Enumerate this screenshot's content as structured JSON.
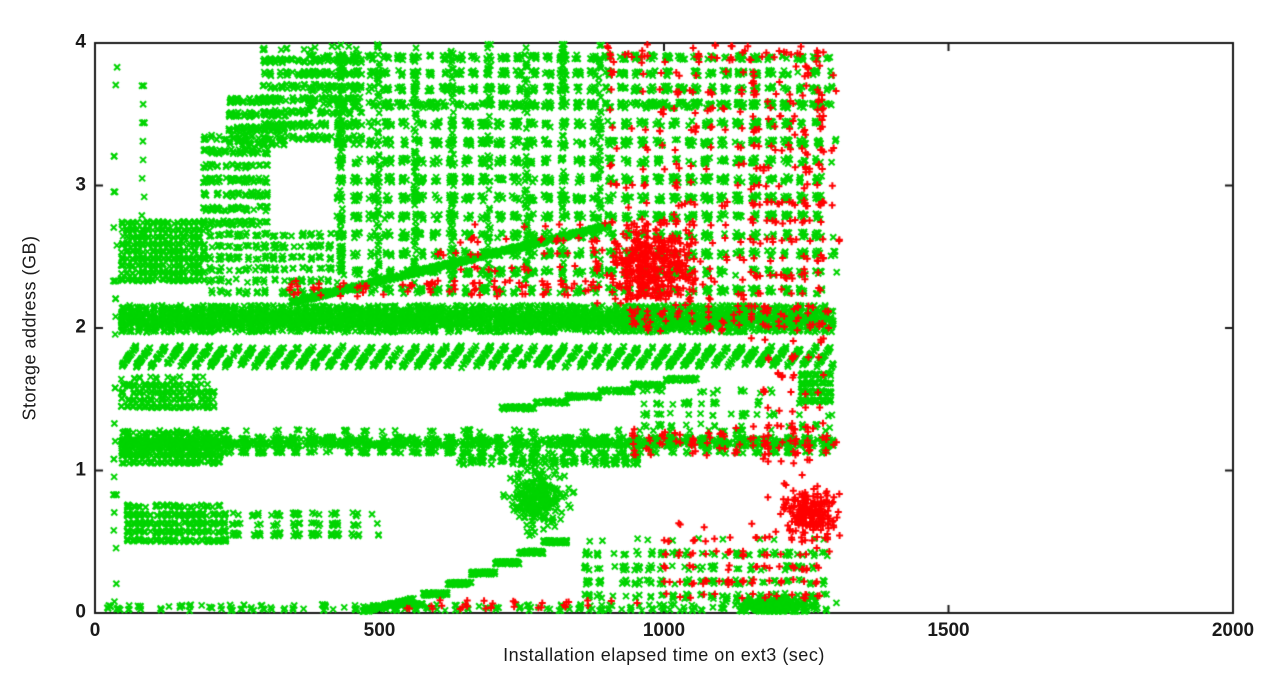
{
  "figure": {
    "background": "#ffffff"
  },
  "chart_data": {
    "type": "scatter",
    "title": "",
    "xlabel": "Installation elapsed time on ext3 (sec)",
    "ylabel": "Storage address (GB)",
    "xlim": [
      0,
      2000
    ],
    "ylim": [
      0,
      4
    ],
    "xticks": [
      0,
      500,
      1000,
      1500,
      2000
    ],
    "yticks": [
      0,
      1,
      2,
      3,
      4
    ],
    "grid": false,
    "legend": "none",
    "axis_color": "#1a1a1a",
    "x_data_extent": [
      15,
      1300
    ],
    "series": [
      {
        "name": "green-x-points",
        "marker": "x",
        "color": "#00d400"
      },
      {
        "name": "red-plus-points",
        "marker": "+",
        "color": "#ff0000"
      }
    ],
    "regions": [
      {
        "kind": "col",
        "series": 0,
        "t": [
          36,
          4
        ],
        "gb": [
          0.08,
          4.0
        ],
        "gq": 0.125,
        "n": 34
      },
      {
        "kind": "col",
        "series": 0,
        "t": [
          84,
          3
        ],
        "gb": [
          2.4,
          4.0
        ],
        "gq": 0.13,
        "n": 14
      },
      {
        "kind": "rect",
        "series": 0,
        "t": [
          46,
          200
        ],
        "gb": [
          2.33,
          2.78
        ],
        "tq": 9,
        "gq": 0.05,
        "n": 550
      },
      {
        "kind": "rect",
        "series": 0,
        "t": [
          46,
          215
        ],
        "gb": [
          1.44,
          1.66
        ],
        "tq": 10,
        "gq": 0.05,
        "n": 260
      },
      {
        "kind": "rect",
        "series": 0,
        "t": [
          46,
          225
        ],
        "gb": [
          1.05,
          1.3
        ],
        "tq": 10,
        "gq": 0.05,
        "n": 380
      },
      {
        "kind": "rect",
        "series": 0,
        "t": [
          56,
          235
        ],
        "gb": [
          0.5,
          0.78
        ],
        "tq": 10,
        "gq": 0.06,
        "n": 380
      },
      {
        "kind": "rect",
        "series": 0,
        "t": [
          240,
          490
        ],
        "gb": [
          0.54,
          0.74
        ],
        "tq": 35,
        "gq": 0.07,
        "n": 130
      },
      {
        "kind": "rect",
        "series": 0,
        "t": [
          46,
          1298
        ],
        "gb": [
          1.97,
          2.16
        ],
        "tq": 14,
        "n": 2400
      },
      {
        "kind": "rect",
        "series": 0,
        "t": [
          46,
          1298
        ],
        "gb": [
          2.02,
          2.1
        ],
        "tq": 7,
        "n": 900
      },
      {
        "kind": "saw",
        "series": 0,
        "t": [
          46,
          1298
        ],
        "gb": [
          1.73,
          1.87
        ],
        "period": 26,
        "jitter": 0.02,
        "n": 1400
      },
      {
        "kind": "rect",
        "series": 0,
        "t": [
          46,
          1298
        ],
        "gb": [
          1.17,
          1.22
        ],
        "n": 550
      },
      {
        "kind": "rect",
        "series": 0,
        "t": [
          46,
          1298
        ],
        "gb": [
          1.12,
          1.28
        ],
        "tq": 30,
        "gq": 0.05,
        "n": 800
      },
      {
        "kind": "rect",
        "series": 0,
        "t": [
          640,
          960
        ],
        "gb": [
          1.04,
          1.1
        ],
        "tq": 18,
        "n": 160
      },
      {
        "kind": "steps",
        "series": 0,
        "t": [
          715,
          1060
        ],
        "gb": [
          1.44,
          1.64
        ],
        "steps": 6,
        "jitter": 0.02,
        "n": 220
      },
      {
        "kind": "blob",
        "series": 0,
        "t": [
          775,
          22
        ],
        "gb": [
          0.8,
          0.1
        ],
        "n": 260
      },
      {
        "kind": "steps",
        "series": 0,
        "t": [
          535,
          830
        ],
        "gb": [
          0.06,
          0.5
        ],
        "steps": 7,
        "jitter": 0.02,
        "n": 420
      },
      {
        "kind": "diag",
        "series": 0,
        "t": [
          470,
          560
        ],
        "gb": [
          0.01,
          0.1
        ],
        "jitter": 0.02,
        "n": 110
      },
      {
        "kind": "rect",
        "series": 0,
        "t": [
          20,
          1298
        ],
        "gb": [
          0.015,
          0.06
        ],
        "tq": 18,
        "n": 230
      },
      {
        "kind": "diag",
        "series": 0,
        "t": [
          345,
          905
        ],
        "gb": [
          2.18,
          2.72
        ],
        "jitter": 0.025,
        "n": 750
      },
      {
        "kind": "rect",
        "series": 0,
        "t": [
          190,
          310
        ],
        "gb": [
          2.72,
          3.38
        ],
        "tq": 12,
        "gq": 0.1,
        "n": 300
      },
      {
        "kind": "rect",
        "series": 0,
        "t": [
          235,
          345
        ],
        "gb": [
          3.28,
          3.68
        ],
        "tq": 12,
        "gq": 0.1,
        "n": 200
      },
      {
        "kind": "rect",
        "series": 0,
        "t": [
          295,
          470
        ],
        "gb": [
          3.32,
          3.97
        ],
        "tq": 10,
        "gq": 0.09,
        "n": 420
      },
      {
        "kind": "rect",
        "series": 0,
        "t": [
          375,
          1298
        ],
        "gb": [
          3.55,
          3.99
        ],
        "tq": 26,
        "gq": 0.11,
        "n": 950
      },
      {
        "kind": "rect",
        "series": 0,
        "t": [
          425,
          1298
        ],
        "gb": [
          2.24,
          3.62
        ],
        "tq": 28,
        "gq": 0.13,
        "n": 2300
      },
      {
        "kind": "rect",
        "series": 0,
        "t": [
          200,
          430
        ],
        "gb": [
          2.24,
          2.72
        ],
        "tq": 16,
        "gq": 0.08,
        "n": 280
      },
      {
        "kind": "rect",
        "series": 0,
        "t": [
          430,
          920
        ],
        "gb": [
          2.3,
          4.0
        ],
        "tq": 65,
        "tf": 0.08,
        "n": 500
      },
      {
        "kind": "rect",
        "series": 0,
        "t": [
          860,
          1300
        ],
        "gb": [
          0.1,
          0.52
        ],
        "tq": 22,
        "gq": 0.1,
        "n": 260
      },
      {
        "kind": "blob",
        "series": 0,
        "t": [
          1195,
          30
        ],
        "gb": [
          0.05,
          0.03
        ],
        "n": 240
      },
      {
        "kind": "rect",
        "series": 0,
        "t": [
          1240,
          1298
        ],
        "gb": [
          1.48,
          1.7
        ],
        "tq": 12,
        "gq": 0.06,
        "n": 140
      },
      {
        "kind": "rect",
        "series": 0,
        "t": [
          960,
          1300
        ],
        "gb": [
          1.3,
          1.6
        ],
        "tq": 25,
        "gq": 0.08,
        "n": 90
      },
      {
        "kind": "blob",
        "series": 1,
        "t": [
          980,
          38
        ],
        "gb": [
          2.45,
          0.14
        ],
        "n": 380
      },
      {
        "kind": "rect",
        "series": 1,
        "t": [
          905,
          1300
        ],
        "gb": [
          2.2,
          4.0
        ],
        "tq": 28,
        "gq": 0.13,
        "n": 260
      },
      {
        "kind": "rect",
        "series": 1,
        "t": [
          1150,
          1300
        ],
        "gb": [
          1.05,
          4.0
        ],
        "tq": 24,
        "gq": 0.12,
        "n": 160
      },
      {
        "kind": "blob",
        "series": 1,
        "t": [
          1255,
          22
        ],
        "gb": [
          0.7,
          0.09
        ],
        "n": 200
      },
      {
        "kind": "rect",
        "series": 1,
        "t": [
          340,
          905
        ],
        "gb": [
          2.22,
          2.33
        ],
        "tq": 40,
        "n": 70
      },
      {
        "kind": "rect",
        "series": 1,
        "t": [
          545,
          960
        ],
        "gb": [
          0.02,
          0.09
        ],
        "tq": 45,
        "n": 30
      },
      {
        "kind": "rect",
        "series": 1,
        "t": [
          1000,
          1300
        ],
        "gb": [
          0.1,
          0.62
        ],
        "tq": 22,
        "gq": 0.1,
        "n": 110
      },
      {
        "kind": "rect",
        "series": 1,
        "t": [
          940,
          1300
        ],
        "gb": [
          1.1,
          1.3
        ],
        "tq": 26,
        "n": 80
      },
      {
        "kind": "rect",
        "series": 1,
        "t": [
          940,
          1300
        ],
        "gb": [
          1.97,
          2.16
        ],
        "tq": 26,
        "n": 70
      },
      {
        "kind": "rect",
        "series": 1,
        "t": [
          600,
          900
        ],
        "gb": [
          2.3,
          2.75
        ],
        "tq": 30,
        "gq": 0.1,
        "n": 60
      },
      {
        "kind": "rect",
        "series": 1,
        "t": [
          900,
          1300
        ],
        "gb": [
          3.85,
          4.0
        ],
        "tq": 30,
        "n": 40
      }
    ]
  }
}
